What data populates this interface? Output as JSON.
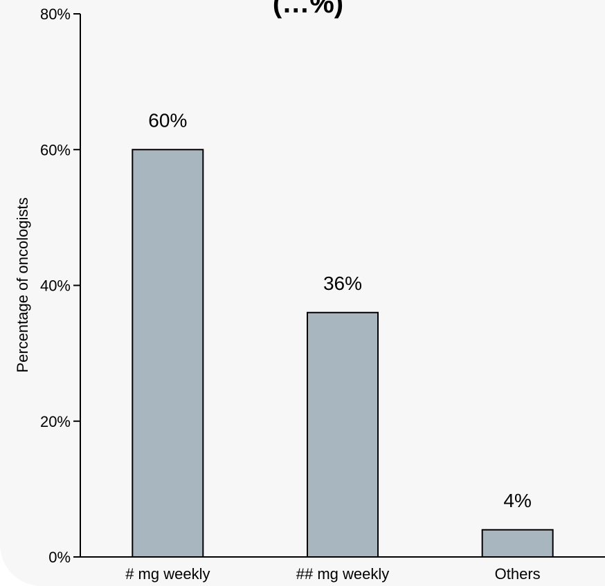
{
  "chart_data": {
    "type": "bar",
    "title_fragment": "(…%)",
    "categories": [
      "# mg weekly",
      "## mg weekly",
      "Others"
    ],
    "values": [
      60,
      36,
      4
    ],
    "data_labels": [
      "60%",
      "36%",
      "4%"
    ],
    "ylabel": "Percentage of oncologists",
    "xlabel": "",
    "ylim": [
      0,
      80
    ],
    "yticks": [
      0,
      20,
      40,
      60,
      80
    ],
    "ytick_labels": [
      "0%",
      "20%",
      "40%",
      "60%",
      "80%"
    ],
    "grid": false,
    "legend": "none",
    "colors": {
      "bar_fill": "#a7b6bf",
      "bar_stroke": "#000000",
      "background": "#f7f7f7"
    }
  }
}
